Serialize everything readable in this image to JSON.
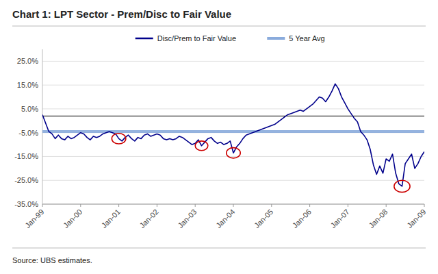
{
  "chart_data": {
    "type": "line",
    "title": "Chart 1: LPT Sector - Prem/Disc to Fair Value",
    "source": "Source: UBS estimates.",
    "x": [
      0,
      1,
      2,
      3,
      4,
      5,
      6,
      7,
      8,
      9,
      10,
      11,
      12,
      13,
      14,
      15,
      16,
      17,
      18,
      19,
      20,
      21,
      22,
      23,
      24,
      25,
      26,
      27,
      28,
      29,
      30,
      31,
      32,
      33,
      34,
      35,
      36,
      37,
      38,
      39,
      40,
      41,
      42,
      43,
      44,
      45,
      46,
      47,
      48,
      49,
      50,
      51,
      52,
      53,
      54,
      55,
      56,
      57,
      58,
      59,
      60,
      61,
      62,
      63,
      64,
      65,
      66,
      67,
      68,
      69,
      70,
      71,
      72,
      73,
      74,
      75,
      76,
      77,
      78,
      79,
      80,
      81,
      82,
      83,
      84,
      85,
      86,
      87,
      88,
      89,
      90,
      91,
      92,
      93,
      94,
      95,
      96,
      97,
      98,
      99,
      100,
      101,
      102,
      103,
      104,
      105,
      106,
      107,
      108,
      109,
      110,
      111,
      112,
      113,
      114,
      115,
      116,
      117,
      118,
      119,
      120
    ],
    "series": [
      {
        "name": "Disc/Prem to Fair Value",
        "type": "line",
        "color": "#00008B",
        "values": [
          2.5,
          -1.0,
          -4.5,
          -5.5,
          -7.5,
          -6.0,
          -7.5,
          -8.0,
          -6.5,
          -7.5,
          -7.0,
          -6.0,
          -5.0,
          -5.5,
          -7.0,
          -8.0,
          -6.5,
          -7.0,
          -6.5,
          -5.5,
          -5.0,
          -4.5,
          -5.0,
          -5.5,
          -7.5,
          -8.5,
          -7.0,
          -6.0,
          -7.5,
          -8.5,
          -7.0,
          -7.5,
          -6.0,
          -5.5,
          -6.5,
          -6.0,
          -5.5,
          -6.0,
          -7.5,
          -8.0,
          -7.5,
          -8.0,
          -7.5,
          -6.5,
          -7.0,
          -8.0,
          -9.0,
          -10.0,
          -9.5,
          -8.0,
          -10.5,
          -9.0,
          -7.5,
          -7.0,
          -8.5,
          -9.5,
          -9.0,
          -10.0,
          -9.5,
          -8.5,
          -13.5,
          -11.0,
          -9.5,
          -7.5,
          -6.0,
          -5.5,
          -5.0,
          -4.5,
          -4.0,
          -3.5,
          -3.0,
          -2.5,
          -2.0,
          -1.5,
          -0.5,
          0.5,
          1.5,
          2.5,
          3.0,
          3.5,
          4.0,
          4.5,
          4.0,
          5.0,
          6.0,
          7.0,
          8.5,
          10.0,
          9.5,
          8.0,
          10.0,
          12.5,
          15.5,
          13.5,
          10.0,
          7.5,
          5.0,
          3.0,
          1.0,
          -0.5,
          -4.5,
          -6.0,
          -8.0,
          -12.0,
          -18.5,
          -22.5,
          -19.0,
          -22.0,
          -16.0,
          -17.0,
          -14.0,
          -22.0,
          -26.5,
          -27.5,
          -18.0,
          -16.0,
          -14.0,
          -20.0,
          -18.0,
          -15.0,
          -13.0
        ]
      },
      {
        "name": "5 Year Avg",
        "type": "hline",
        "color": "#8AABDC",
        "value": -4.5
      }
    ],
    "reference_line": 2.0,
    "highlights": {
      "color": "#CC0000",
      "x": [
        24,
        50,
        60,
        113
      ],
      "y": [
        -7.5,
        -10.5,
        -13.5,
        -27.5
      ],
      "radius": [
        2.2,
        2.0,
        2.2,
        2.5
      ]
    },
    "xlim": [
      0,
      120
    ],
    "xticks": [
      {
        "value": 0,
        "label": "Jan-99"
      },
      {
        "value": 12,
        "label": "Jan-00"
      },
      {
        "value": 24,
        "label": "Jan-01"
      },
      {
        "value": 36,
        "label": "Jan-02"
      },
      {
        "value": 48,
        "label": "Jan-03"
      },
      {
        "value": 60,
        "label": "Jan-04"
      },
      {
        "value": 72,
        "label": "Jan-05"
      },
      {
        "value": 84,
        "label": "Jan-06"
      },
      {
        "value": 96,
        "label": "Jan-07"
      },
      {
        "value": 108,
        "label": "Jan-08"
      },
      {
        "value": 120,
        "label": "Jan-09"
      }
    ],
    "ylim": [
      -35.0,
      30.0
    ],
    "yticks": [
      {
        "value": -35.0,
        "label": "-35.0%"
      },
      {
        "value": -25.0,
        "label": "-25.0%"
      },
      {
        "value": -15.0,
        "label": "-15.0%"
      },
      {
        "value": -5.0,
        "label": "-5.0%"
      },
      {
        "value": 5.0,
        "label": "5.0%"
      },
      {
        "value": 15.0,
        "label": "15.0%"
      },
      {
        "value": 25.0,
        "label": "25.0%"
      }
    ],
    "grid": true,
    "legend": "top"
  }
}
